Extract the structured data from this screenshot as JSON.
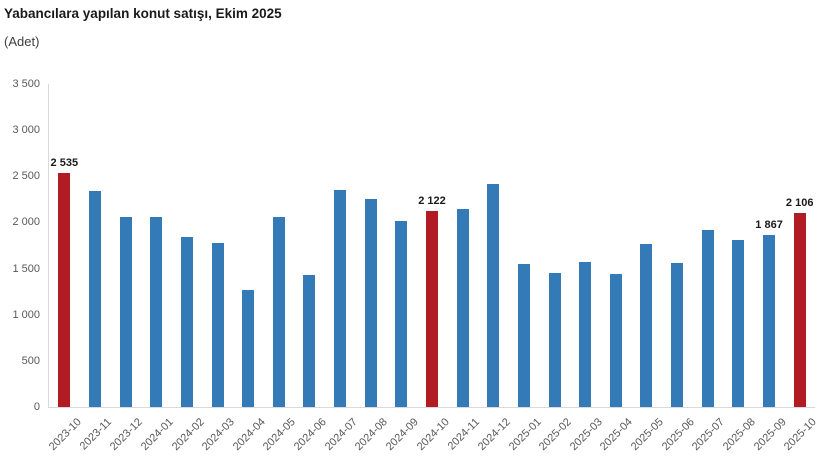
{
  "header": {
    "title": "Yabancılara yapılan konut satışı, Ekim 2025",
    "subtitle": "(Adet)"
  },
  "chart_data": {
    "type": "bar",
    "title": "Yabancılara yapılan konut satışı, Ekim 2025",
    "unit": "Adet",
    "xlabel": "",
    "ylabel": "",
    "categories": [
      "2023-10",
      "2023-11",
      "2023-12",
      "2024-01",
      "2024-02",
      "2024-03",
      "2024-04",
      "2024-05",
      "2024-06",
      "2024-07",
      "2024-08",
      "2024-09",
      "2024-10",
      "2024-11",
      "2024-12",
      "2025-01",
      "2025-02",
      "2025-03",
      "2025-04",
      "2025-05",
      "2025-06",
      "2025-07",
      "2025-08",
      "2025-09",
      "2025-10"
    ],
    "values": [
      2535,
      2345,
      2060,
      2055,
      1845,
      1775,
      1270,
      2060,
      1435,
      2350,
      2255,
      2020,
      2122,
      2150,
      2415,
      1545,
      1450,
      1570,
      1440,
      1765,
      1560,
      1915,
      1810,
      1867,
      2106
    ],
    "highlight_indices": [
      0,
      12,
      24
    ],
    "data_labels": {
      "2023-10": "2 535",
      "2024-10": "2 122",
      "2025-09": "1 867",
      "2025-10": "2 106"
    },
    "ylim": [
      0,
      3500
    ],
    "ytick_step": 500,
    "ytick_labels": [
      "0",
      "500",
      "1 000",
      "1 500",
      "2 000",
      "2 500",
      "3 000",
      "3 500"
    ],
    "grid": false,
    "legend": "none",
    "colors": {
      "bar": "#337ab7",
      "highlight": "#b11b22",
      "axis_line": "#d9d9d9",
      "tick_text": "#595959",
      "data_label_text": "#1a1a1a"
    }
  }
}
